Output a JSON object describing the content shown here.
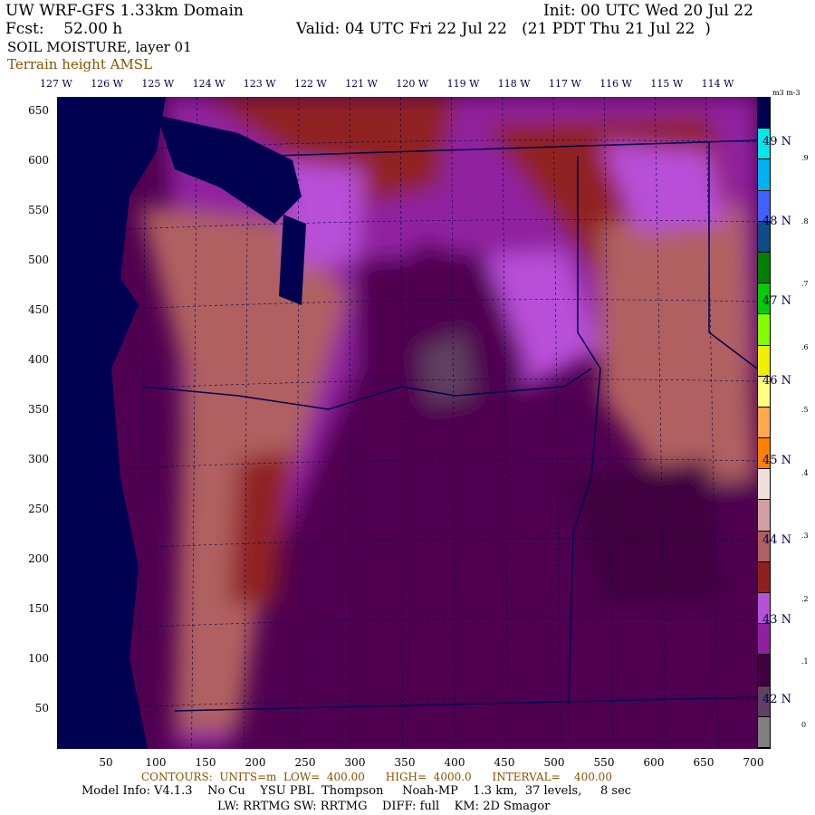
{
  "header": {
    "title": "UW WRF-GFS 1.33km Domain",
    "init": "Init: 00 UTC Wed 20 Jul 22",
    "fcst": "Fcst:    52.00 h",
    "valid": "Valid: 04 UTC Fri 22 Jul 22   (21 PDT Thu 21 Jul 22  )",
    "field": "SOIL MOISTURE, layer 01",
    "overlay": "Terrain height AMSL"
  },
  "longitudes": [
    "127 W",
    "126 W",
    "125 W",
    "124 W",
    "123 W",
    "122 W",
    "121 W",
    "120 W",
    "119 W",
    "118 W",
    "117 W",
    "116 W",
    "115 W",
    "114 W"
  ],
  "latitudes": [
    "49 N",
    "48 N",
    "47 N",
    "46 N",
    "45 N",
    "44 N",
    "43 N",
    "42 N"
  ],
  "y_ticks": [
    "650",
    "600",
    "550",
    "500",
    "450",
    "400",
    "350",
    "300",
    "250",
    "200",
    "150",
    "100",
    "50"
  ],
  "x_ticks": [
    "50",
    "100",
    "150",
    "200",
    "250",
    "300",
    "350",
    "400",
    "450",
    "500",
    "550",
    "600",
    "650",
    "700"
  ],
  "colorbar": {
    "units": "m3 m-3",
    "labels": [
      ".9",
      ".8",
      ".7",
      ".6",
      ".5",
      ".4",
      ".3",
      ".2",
      ".1",
      "0"
    ],
    "colors": [
      "#000050",
      "#00e8e8",
      "#00b0f0",
      "#4060ff",
      "#104c88",
      "#008000",
      "#00cc00",
      "#80ff00",
      "#f0f000",
      "#ffff80",
      "#ffa850",
      "#ff8000",
      "#f0e0dc",
      "#d0a0a0",
      "#b06060",
      "#902020",
      "#b850d8",
      "#9020a0",
      "#400040",
      "#604060",
      "#808080"
    ]
  },
  "footer": {
    "contours": "CONTOURS:  UNITS=m  LOW=  400.00      HIGH=  4000.0      INTERVAL=    400.00",
    "model_info": "Model Info: V4.1.3    No Cu    YSU PBL  Thompson     Noah-MP    1.3 km,  37 levels,     8 sec",
    "physics": "LW: RRTMG SW: RRTMG    DIFF: full    KM: 2D Smagor"
  }
}
